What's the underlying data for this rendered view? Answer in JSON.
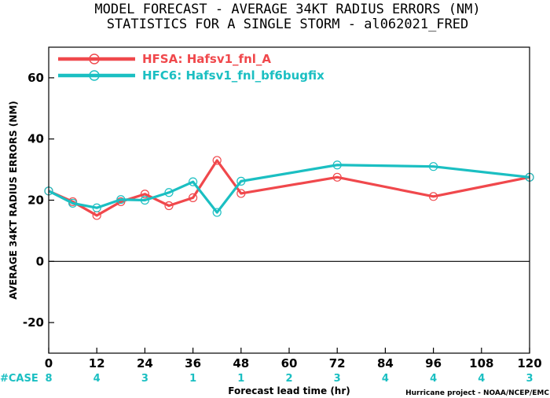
{
  "chart_data": {
    "type": "line",
    "title_lines": [
      "MODEL FORECAST - AVERAGE 34KT RADIUS ERRORS (NM)",
      "STATISTICS FOR A SINGLE STORM - al062021_FRED"
    ],
    "xlabel": "Forecast lead time (hr)",
    "ylabel": "AVERAGE 34KT RADIUS ERRORS (NM)",
    "xlim": [
      0,
      120
    ],
    "ylim": [
      -30,
      70
    ],
    "xticks": [
      0,
      12,
      24,
      36,
      48,
      60,
      72,
      84,
      96,
      108,
      120
    ],
    "yticks": [
      -20,
      0,
      20,
      40,
      60
    ],
    "case_label": "#CASE",
    "case_color": "#1bbfc2",
    "cases": [
      {
        "x": 0,
        "n": "8"
      },
      {
        "x": 12,
        "n": "4"
      },
      {
        "x": 24,
        "n": "3"
      },
      {
        "x": 36,
        "n": "1"
      },
      {
        "x": 48,
        "n": "1"
      },
      {
        "x": 60,
        "n": "2"
      },
      {
        "x": 72,
        "n": "3"
      },
      {
        "x": 84,
        "n": "4"
      },
      {
        "x": 96,
        "n": "4"
      },
      {
        "x": 108,
        "n": "4"
      },
      {
        "x": 120,
        "n": "3"
      }
    ],
    "legend_position": "top-left",
    "series": [
      {
        "name": "HFSA: Hafsv1_fnl_A",
        "color": "#f0484c",
        "x": [
          0,
          6,
          12,
          18,
          24,
          30,
          36,
          42,
          48,
          72,
          96,
          120
        ],
        "y": [
          23,
          19.5,
          15,
          19.5,
          22,
          18.2,
          20.8,
          33,
          22.2,
          27.5,
          21.2,
          27.5
        ]
      },
      {
        "name": "HFC6: Hafsv1_fnl_bf6bugfix",
        "color": "#1bbfc2",
        "x": [
          0,
          6,
          12,
          18,
          24,
          30,
          36,
          42,
          48,
          72,
          96,
          120
        ],
        "y": [
          23,
          19,
          17.5,
          20.2,
          20,
          22.5,
          26,
          16,
          26.2,
          31.5,
          31,
          27.5
        ]
      }
    ],
    "credit": "Hurricane project - NOAA/NCEP/EMC"
  }
}
